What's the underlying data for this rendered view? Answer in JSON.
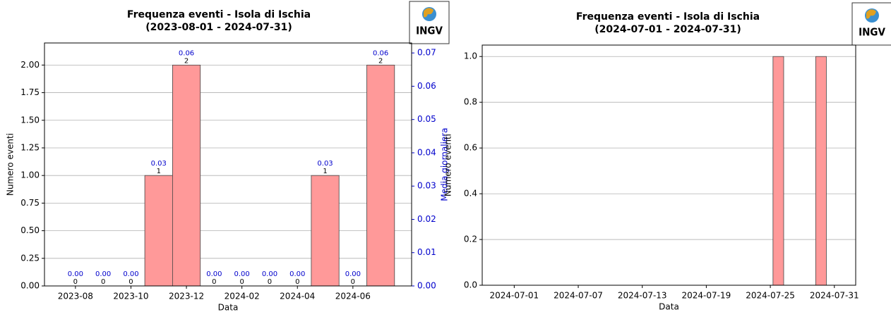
{
  "chart_data": [
    {
      "type": "bar",
      "title": "Frequenza eventi - Isola di Ischia",
      "subtitle": "(2023-08-01 - 2024-07-31)",
      "logo": "INGV",
      "xlabel": "Data",
      "ylabel": "Numero eventi",
      "y2label": "Media giornaliera",
      "categories": [
        "2023-08",
        null,
        "2023-10",
        null,
        "2023-12",
        null,
        "2024-02",
        null,
        "2024-04",
        null,
        "2024-06",
        null
      ],
      "values": [
        0,
        0,
        0,
        1,
        2,
        0,
        0,
        0,
        0,
        1,
        0,
        2
      ],
      "y2_values": [
        0,
        0,
        0,
        0.03,
        0.06,
        0,
        0,
        0,
        0,
        0.03,
        0,
        0.06
      ],
      "y2_value_labels": [
        "0.00",
        "0.00",
        "0.00",
        "0.03",
        "0.06",
        "0.00",
        "0.00",
        "0.00",
        "0.00",
        "0.03",
        "0.00",
        "0.06"
      ],
      "color": "#ff9999",
      "edgecolor": "#444444",
      "y2color": "#0000cc",
      "ylim": [
        0,
        2.2
      ],
      "yticks": [
        {
          "value": 0,
          "label": "0.00"
        },
        {
          "value": 0.25,
          "label": "0.25"
        },
        {
          "value": 0.5,
          "label": "0.50"
        },
        {
          "value": 0.75,
          "label": "0.75"
        },
        {
          "value": 1,
          "label": "1.00"
        },
        {
          "value": 1.25,
          "label": "1.25"
        },
        {
          "value": 1.5,
          "label": "1.50"
        },
        {
          "value": 1.75,
          "label": "1.75"
        },
        {
          "value": 2,
          "label": "2.00"
        }
      ],
      "y2lim": [
        0,
        0.073
      ],
      "y2ticks": [
        {
          "value": 0,
          "label": "0.00"
        },
        0.01,
        0.02,
        0.03,
        0.04,
        0.05,
        0.06,
        0.07
      ],
      "grid": true
    },
    {
      "type": "bar",
      "title": "Frequenza eventi - Isola di Ischia",
      "subtitle": "(2024-07-01 - 2024-07-31)",
      "logo": "INGV",
      "xlabel": "Data",
      "ylabel": "Numero eventi",
      "x": [
        "2024-07-25",
        "2024-07-29"
      ],
      "values": [
        1,
        1
      ],
      "color": "#ff9999",
      "edgecolor": "#444444",
      "xlim": [
        "2024-06-28",
        "2024-08-02"
      ],
      "xticks": [
        "2024-07-01",
        "2024-07-07",
        "2024-07-13",
        "2024-07-19",
        "2024-07-25",
        "2024-07-31"
      ],
      "ylim": [
        0,
        1.05
      ],
      "yticks": [
        {
          "value": 0,
          "label": "0.0"
        },
        0.2,
        0.4,
        0.6,
        0.8,
        {
          "value": 1,
          "label": "1.0"
        }
      ],
      "grid": true
    }
  ]
}
